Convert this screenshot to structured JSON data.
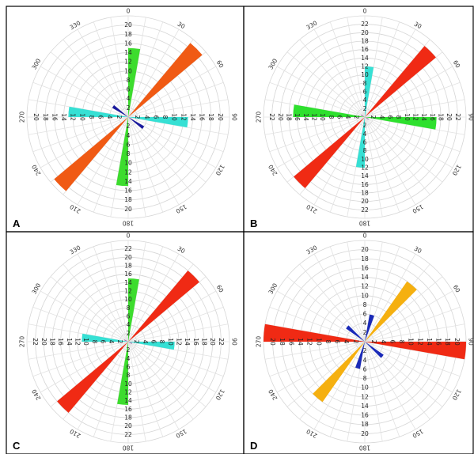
{
  "chart_data": [
    {
      "type": "rose",
      "panel_label": "A",
      "direction_labels": [
        "0",
        "30",
        "60",
        "90",
        "120",
        "150",
        "180",
        "210",
        "240",
        "270",
        "300",
        "330"
      ],
      "radial_ticks": [
        2,
        4,
        6,
        8,
        10,
        12,
        14,
        16,
        18,
        20
      ],
      "rmax": 22,
      "petals": [
        {
          "direction": 5,
          "value": 15,
          "color": "#3ddc2e"
        },
        {
          "direction": 45,
          "value": 21,
          "color": "#f05a14"
        },
        {
          "direction": 95,
          "value": 13,
          "color": "#36e0d4"
        },
        {
          "direction": 125,
          "value": 4,
          "color": "#1a1a9e"
        },
        {
          "direction": 185,
          "value": 15,
          "color": "#3ddc2e"
        },
        {
          "direction": 225,
          "value": 21,
          "color": "#f05a14"
        },
        {
          "direction": 275,
          "value": 13,
          "color": "#36e0d4"
        },
        {
          "direction": 305,
          "value": 4,
          "color": "#1a1a9e"
        }
      ]
    },
    {
      "type": "rose",
      "panel_label": "B",
      "direction_labels": [
        "0",
        "30",
        "60",
        "90",
        "120",
        "150",
        "180",
        "210",
        "240",
        "270",
        "300",
        "330"
      ],
      "radial_ticks": [
        2,
        4,
        6,
        8,
        10,
        12,
        14,
        16,
        18,
        20,
        22
      ],
      "rmax": 24,
      "petals": [
        {
          "direction": 5,
          "value": 12,
          "color": "#36e0d4"
        },
        {
          "direction": 45,
          "value": 22,
          "color": "#f02a14"
        },
        {
          "direction": 95,
          "value": 17,
          "color": "#2ee02e"
        },
        {
          "direction": 120,
          "value": 1,
          "color": "#7a2a8a"
        },
        {
          "direction": 185,
          "value": 12,
          "color": "#36e0d4"
        },
        {
          "direction": 225,
          "value": 22,
          "color": "#f02a14"
        },
        {
          "direction": 275,
          "value": 17,
          "color": "#2ee02e"
        },
        {
          "direction": 300,
          "value": 1,
          "color": "#7a2a8a"
        }
      ]
    },
    {
      "type": "rose",
      "panel_label": "C",
      "direction_labels": [
        "0",
        "30",
        "60",
        "90",
        "120",
        "150",
        "180",
        "210",
        "240",
        "270",
        "300",
        "330"
      ],
      "radial_ticks": [
        2,
        4,
        6,
        8,
        10,
        12,
        14,
        16,
        18,
        20,
        22
      ],
      "rmax": 24,
      "petals": [
        {
          "direction": 5,
          "value": 15,
          "color": "#3ddc2e"
        },
        {
          "direction": 45,
          "value": 22,
          "color": "#f02a14"
        },
        {
          "direction": 95,
          "value": 11,
          "color": "#36e0d4"
        },
        {
          "direction": 115,
          "value": 1,
          "color": "#7a2a8a"
        },
        {
          "direction": 185,
          "value": 15,
          "color": "#3ddc2e"
        },
        {
          "direction": 225,
          "value": 22,
          "color": "#f02a14"
        },
        {
          "direction": 275,
          "value": 11,
          "color": "#36e0d4"
        },
        {
          "direction": 295,
          "value": 1,
          "color": "#7a2a8a"
        }
      ]
    },
    {
      "type": "rose",
      "panel_label": "D",
      "direction_labels": [
        "0",
        "30",
        "60",
        "90",
        "120",
        "150",
        "180",
        "210",
        "240",
        "270",
        "300",
        "330"
      ],
      "radial_ticks": [
        2,
        4,
        6,
        8,
        10,
        12,
        14,
        16,
        18,
        20
      ],
      "rmax": 22,
      "petals": [
        {
          "direction": 15,
          "value": 6,
          "color": "#1a2ab8"
        },
        {
          "direction": 40,
          "value": 16,
          "color": "#f5b010"
        },
        {
          "direction": 95,
          "value": 22,
          "color": "#f02a14"
        },
        {
          "direction": 130,
          "value": 5,
          "color": "#1a2ab8"
        },
        {
          "direction": 195,
          "value": 6,
          "color": "#1a2ab8"
        },
        {
          "direction": 220,
          "value": 16,
          "color": "#f5b010"
        },
        {
          "direction": 275,
          "value": 22,
          "color": "#f02a14"
        },
        {
          "direction": 310,
          "value": 5,
          "color": "#1a2ab8"
        }
      ]
    }
  ]
}
